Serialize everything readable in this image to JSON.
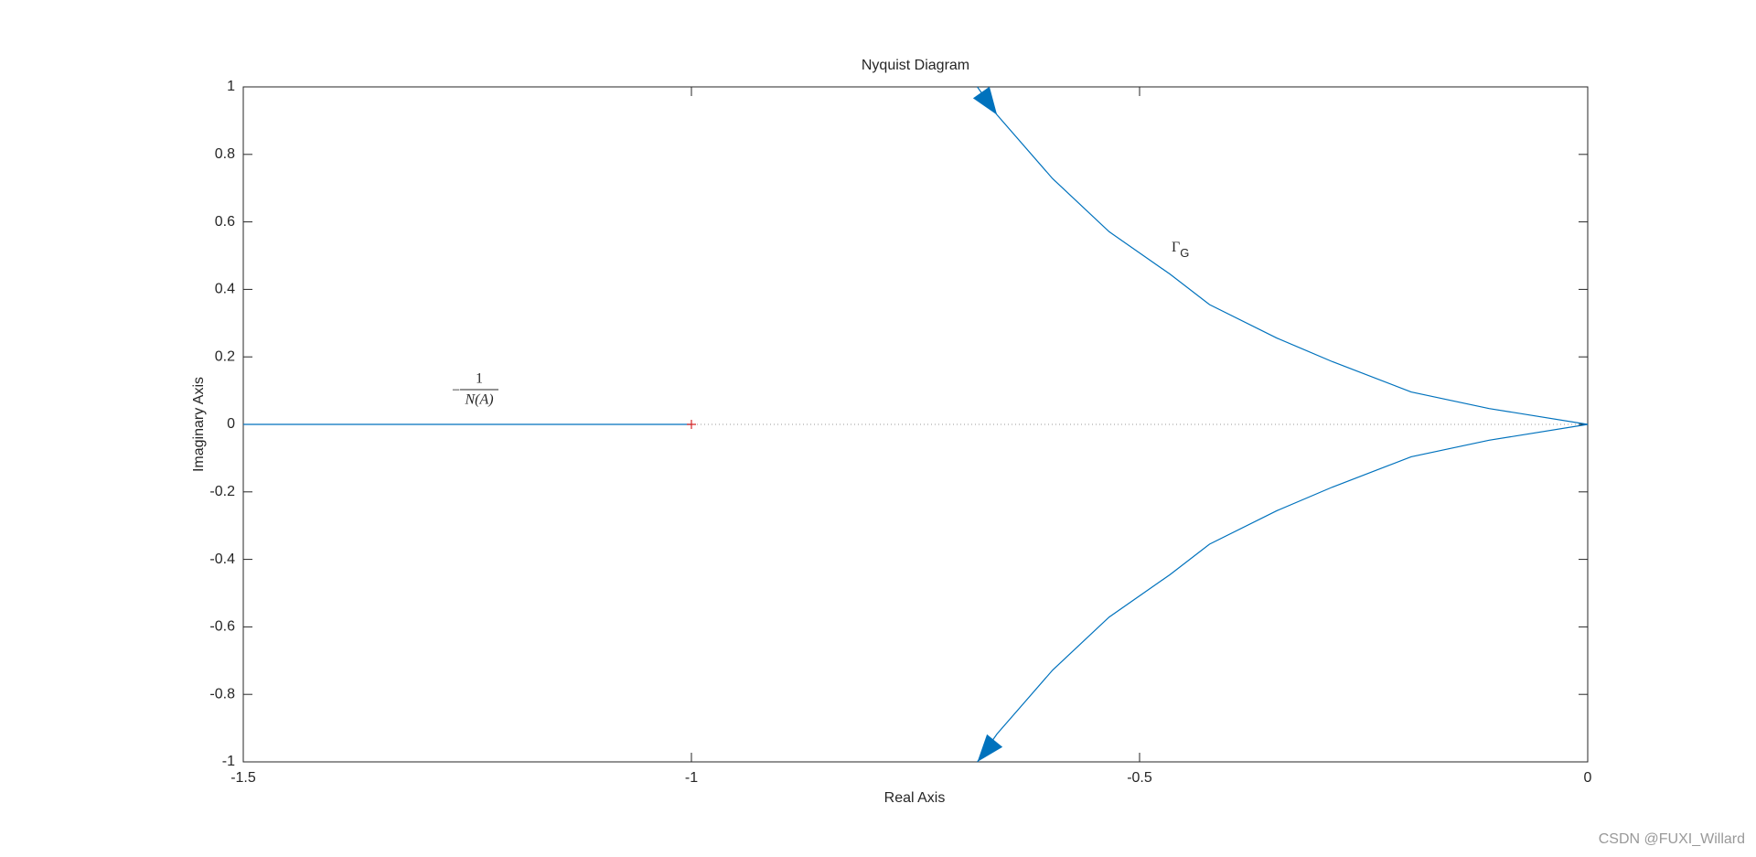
{
  "chart_data": {
    "type": "line",
    "title": "Nyquist Diagram",
    "x_label": "Real Axis",
    "y_label": "Imaginary Axis",
    "series": [
      {
        "color": "#0072bd",
        "x": [
          -0.681,
          -0.659,
          -0.597,
          -0.534,
          -0.466,
          -0.422,
          -0.347,
          -0.285,
          -0.197,
          -0.11,
          0,
          -0.11,
          -0.197,
          -0.285,
          -0.347,
          -0.422,
          -0.466,
          -0.534,
          -0.597,
          -0.659,
          -0.681
        ],
        "values": [
          1,
          0.917,
          0.728,
          0.571,
          0.445,
          0.355,
          0.256,
          0.186,
          0.096,
          0.047,
          0,
          -0.047,
          -0.096,
          -0.186,
          -0.256,
          -0.355,
          -0.445,
          -0.571,
          -0.728,
          -0.917,
          -1
        ]
      },
      {
        "color": "#0072bd",
        "x": [
          -1.5,
          -1
        ],
        "values": [
          0,
          0
        ]
      }
    ],
    "markers": [
      {
        "x": -1,
        "y": 0,
        "color": "#d62728"
      }
    ],
    "annotations": {
      "gamma": {
        "text": "Γ",
        "sub": "G"
      },
      "describing_function": {
        "sign": "−",
        "numerator": "1",
        "denominator": "N(A)"
      }
    },
    "xlim": [
      -1.5,
      0
    ],
    "xticks": [
      -1.5,
      -1,
      -0.5,
      0
    ],
    "ylim": [
      -1,
      1
    ],
    "yticks": [
      -1,
      -0.8,
      -0.6,
      -0.4,
      -0.2,
      0,
      0.2,
      0.4,
      0.6,
      0.8,
      1
    ],
    "grid": false
  },
  "watermark": "CSDN @FUXI_Willard"
}
